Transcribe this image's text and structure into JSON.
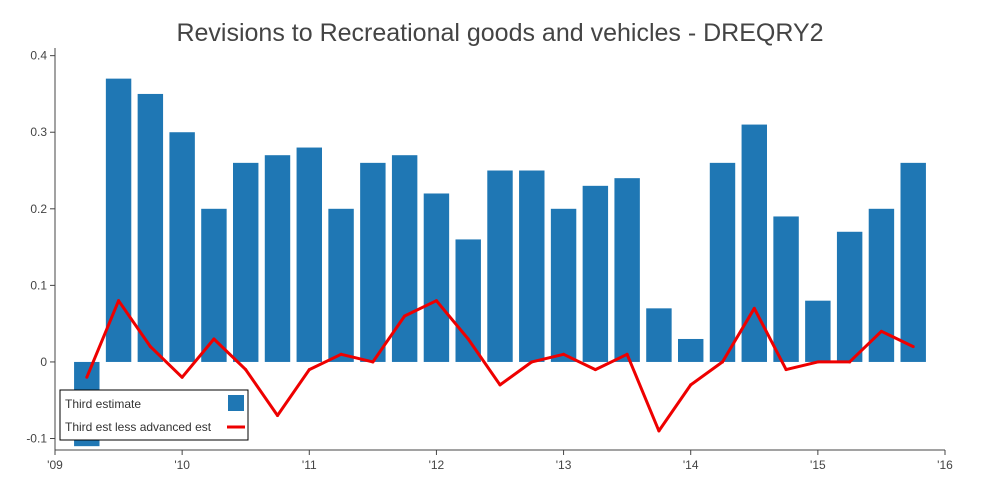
{
  "chart_data": {
    "type": "bar",
    "title": "Revisions to Recreational goods and vehicles - DREQRY2",
    "xlabel": "",
    "ylabel": "",
    "ylim": [
      -0.115,
      0.41
    ],
    "xlim": [
      2009.0,
      2016.0
    ],
    "yticks": [
      "-0.1",
      "0",
      "0.1",
      "0.2",
      "0.3",
      "0.4"
    ],
    "ytick_values": [
      -0.1,
      0.0,
      0.1,
      0.2,
      0.3,
      0.4
    ],
    "xticks": [
      "'09",
      "'10",
      "'11",
      "'12",
      "'13",
      "'14",
      "'15",
      "'16"
    ],
    "xtick_values": [
      2009,
      2010,
      2011,
      2012,
      2013,
      2014,
      2015,
      2016
    ],
    "grid": false,
    "legend_position": "bottom-left",
    "x": [
      2009.25,
      2009.5,
      2009.75,
      2010.0,
      2010.25,
      2010.5,
      2010.75,
      2011.0,
      2011.25,
      2011.5,
      2011.75,
      2012.0,
      2012.25,
      2012.5,
      2012.75,
      2013.0,
      2013.25,
      2013.5,
      2013.75,
      2014.0,
      2014.25,
      2014.5,
      2014.75,
      2015.0,
      2015.25,
      2015.5,
      2015.75
    ],
    "series": [
      {
        "name": "Third estimate",
        "type": "bar",
        "color": "#1f77b4",
        "values": [
          -0.11,
          0.37,
          0.35,
          0.3,
          0.2,
          0.26,
          0.27,
          0.28,
          0.2,
          0.26,
          0.27,
          0.22,
          0.16,
          0.25,
          0.25,
          0.2,
          0.23,
          0.24,
          0.07,
          0.03,
          0.26,
          0.31,
          0.19,
          0.08,
          0.17,
          0.2,
          0.26
        ]
      },
      {
        "name": "Third est less advanced est",
        "type": "line",
        "color": "#ee0000",
        "values": [
          -0.02,
          0.08,
          0.02,
          -0.02,
          0.03,
          -0.01,
          -0.07,
          -0.01,
          0.01,
          0.0,
          0.06,
          0.08,
          0.03,
          -0.03,
          0.0,
          0.01,
          -0.01,
          0.01,
          -0.09,
          -0.03,
          0.0,
          0.07,
          -0.01,
          0.0,
          0.0,
          0.04,
          0.02
        ]
      }
    ]
  }
}
